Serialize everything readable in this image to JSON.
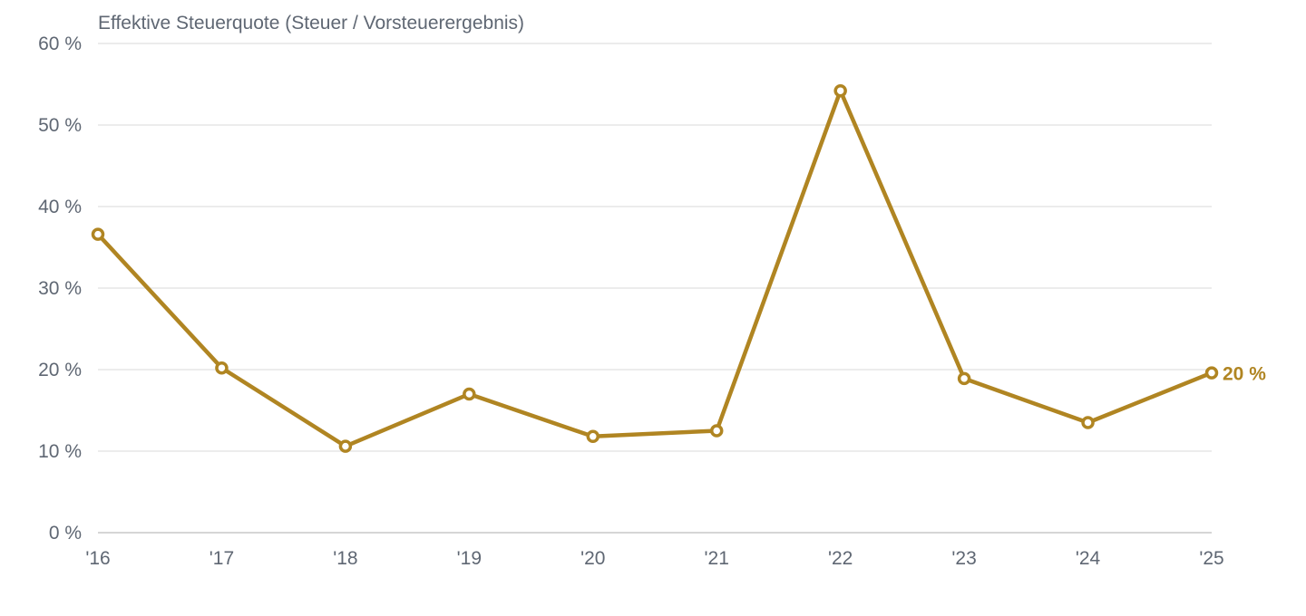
{
  "chart_data": {
    "type": "line",
    "title": "Effektive Steuerquote (Steuer / Vorsteuerergebnis)",
    "xlabel": "",
    "ylabel": "",
    "categories": [
      "'16",
      "'17",
      "'18",
      "'19",
      "'20",
      "'21",
      "'22",
      "'23",
      "'24",
      "'25"
    ],
    "series": [
      {
        "values": [
          36.6,
          20.2,
          10.6,
          17.0,
          11.8,
          12.5,
          54.2,
          18.9,
          13.5,
          19.6
        ],
        "color": "#b08522",
        "end_label": "20 %"
      }
    ],
    "ylim": [
      0,
      60
    ],
    "yticks": [
      0,
      10,
      20,
      30,
      40,
      50,
      60
    ],
    "ytick_labels": [
      "0 %",
      "10 %",
      "20 %",
      "30 %",
      "40 %",
      "50 %",
      "60 %"
    ],
    "grid": true,
    "legend": "none"
  }
}
